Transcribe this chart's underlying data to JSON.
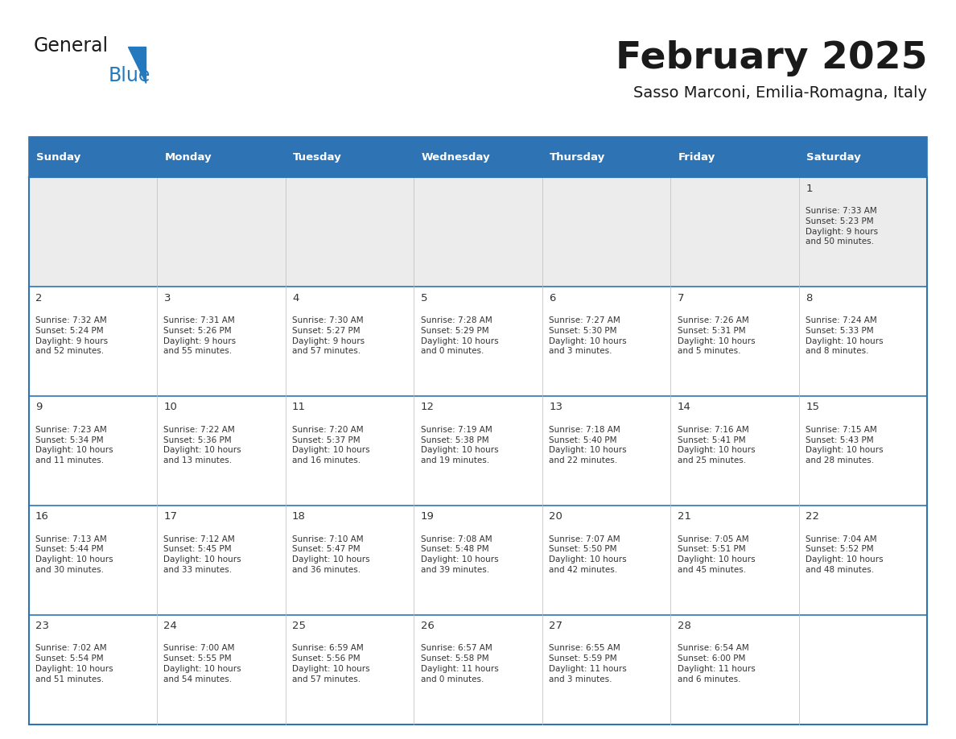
{
  "title": "February 2025",
  "subtitle": "Sasso Marconi, Emilia-Romagna, Italy",
  "header_bg": "#2E74B5",
  "header_text": "#FFFFFF",
  "cell_bg": "#FFFFFF",
  "first_row_bg": "#ECECEC",
  "border_color": "#2E74B5",
  "text_color": "#333333",
  "day_headers": [
    "Sunday",
    "Monday",
    "Tuesday",
    "Wednesday",
    "Thursday",
    "Friday",
    "Saturday"
  ],
  "logo_black_color": "#1a1a1a",
  "logo_blue_color": "#2478BE",
  "title_color": "#1a1a1a",
  "subtitle_color": "#1a1a1a",
  "weeks": [
    [
      {
        "day": null,
        "sunrise": null,
        "sunset": null,
        "daylight": null
      },
      {
        "day": null,
        "sunrise": null,
        "sunset": null,
        "daylight": null
      },
      {
        "day": null,
        "sunrise": null,
        "sunset": null,
        "daylight": null
      },
      {
        "day": null,
        "sunrise": null,
        "sunset": null,
        "daylight": null
      },
      {
        "day": null,
        "sunrise": null,
        "sunset": null,
        "daylight": null
      },
      {
        "day": null,
        "sunrise": null,
        "sunset": null,
        "daylight": null
      },
      {
        "day": 1,
        "sunrise": "7:33 AM",
        "sunset": "5:23 PM",
        "daylight": "9 hours\nand 50 minutes."
      }
    ],
    [
      {
        "day": 2,
        "sunrise": "7:32 AM",
        "sunset": "5:24 PM",
        "daylight": "9 hours\nand 52 minutes."
      },
      {
        "day": 3,
        "sunrise": "7:31 AM",
        "sunset": "5:26 PM",
        "daylight": "9 hours\nand 55 minutes."
      },
      {
        "day": 4,
        "sunrise": "7:30 AM",
        "sunset": "5:27 PM",
        "daylight": "9 hours\nand 57 minutes."
      },
      {
        "day": 5,
        "sunrise": "7:28 AM",
        "sunset": "5:29 PM",
        "daylight": "10 hours\nand 0 minutes."
      },
      {
        "day": 6,
        "sunrise": "7:27 AM",
        "sunset": "5:30 PM",
        "daylight": "10 hours\nand 3 minutes."
      },
      {
        "day": 7,
        "sunrise": "7:26 AM",
        "sunset": "5:31 PM",
        "daylight": "10 hours\nand 5 minutes."
      },
      {
        "day": 8,
        "sunrise": "7:24 AM",
        "sunset": "5:33 PM",
        "daylight": "10 hours\nand 8 minutes."
      }
    ],
    [
      {
        "day": 9,
        "sunrise": "7:23 AM",
        "sunset": "5:34 PM",
        "daylight": "10 hours\nand 11 minutes."
      },
      {
        "day": 10,
        "sunrise": "7:22 AM",
        "sunset": "5:36 PM",
        "daylight": "10 hours\nand 13 minutes."
      },
      {
        "day": 11,
        "sunrise": "7:20 AM",
        "sunset": "5:37 PM",
        "daylight": "10 hours\nand 16 minutes."
      },
      {
        "day": 12,
        "sunrise": "7:19 AM",
        "sunset": "5:38 PM",
        "daylight": "10 hours\nand 19 minutes."
      },
      {
        "day": 13,
        "sunrise": "7:18 AM",
        "sunset": "5:40 PM",
        "daylight": "10 hours\nand 22 minutes."
      },
      {
        "day": 14,
        "sunrise": "7:16 AM",
        "sunset": "5:41 PM",
        "daylight": "10 hours\nand 25 minutes."
      },
      {
        "day": 15,
        "sunrise": "7:15 AM",
        "sunset": "5:43 PM",
        "daylight": "10 hours\nand 28 minutes."
      }
    ],
    [
      {
        "day": 16,
        "sunrise": "7:13 AM",
        "sunset": "5:44 PM",
        "daylight": "10 hours\nand 30 minutes."
      },
      {
        "day": 17,
        "sunrise": "7:12 AM",
        "sunset": "5:45 PM",
        "daylight": "10 hours\nand 33 minutes."
      },
      {
        "day": 18,
        "sunrise": "7:10 AM",
        "sunset": "5:47 PM",
        "daylight": "10 hours\nand 36 minutes."
      },
      {
        "day": 19,
        "sunrise": "7:08 AM",
        "sunset": "5:48 PM",
        "daylight": "10 hours\nand 39 minutes."
      },
      {
        "day": 20,
        "sunrise": "7:07 AM",
        "sunset": "5:50 PM",
        "daylight": "10 hours\nand 42 minutes."
      },
      {
        "day": 21,
        "sunrise": "7:05 AM",
        "sunset": "5:51 PM",
        "daylight": "10 hours\nand 45 minutes."
      },
      {
        "day": 22,
        "sunrise": "7:04 AM",
        "sunset": "5:52 PM",
        "daylight": "10 hours\nand 48 minutes."
      }
    ],
    [
      {
        "day": 23,
        "sunrise": "7:02 AM",
        "sunset": "5:54 PM",
        "daylight": "10 hours\nand 51 minutes."
      },
      {
        "day": 24,
        "sunrise": "7:00 AM",
        "sunset": "5:55 PM",
        "daylight": "10 hours\nand 54 minutes."
      },
      {
        "day": 25,
        "sunrise": "6:59 AM",
        "sunset": "5:56 PM",
        "daylight": "10 hours\nand 57 minutes."
      },
      {
        "day": 26,
        "sunrise": "6:57 AM",
        "sunset": "5:58 PM",
        "daylight": "11 hours\nand 0 minutes."
      },
      {
        "day": 27,
        "sunrise": "6:55 AM",
        "sunset": "5:59 PM",
        "daylight": "11 hours\nand 3 minutes."
      },
      {
        "day": 28,
        "sunrise": "6:54 AM",
        "sunset": "6:00 PM",
        "daylight": "11 hours\nand 6 minutes."
      },
      {
        "day": null,
        "sunrise": null,
        "sunset": null,
        "daylight": null
      }
    ]
  ],
  "figsize": [
    11.88,
    9.18
  ],
  "dpi": 100
}
